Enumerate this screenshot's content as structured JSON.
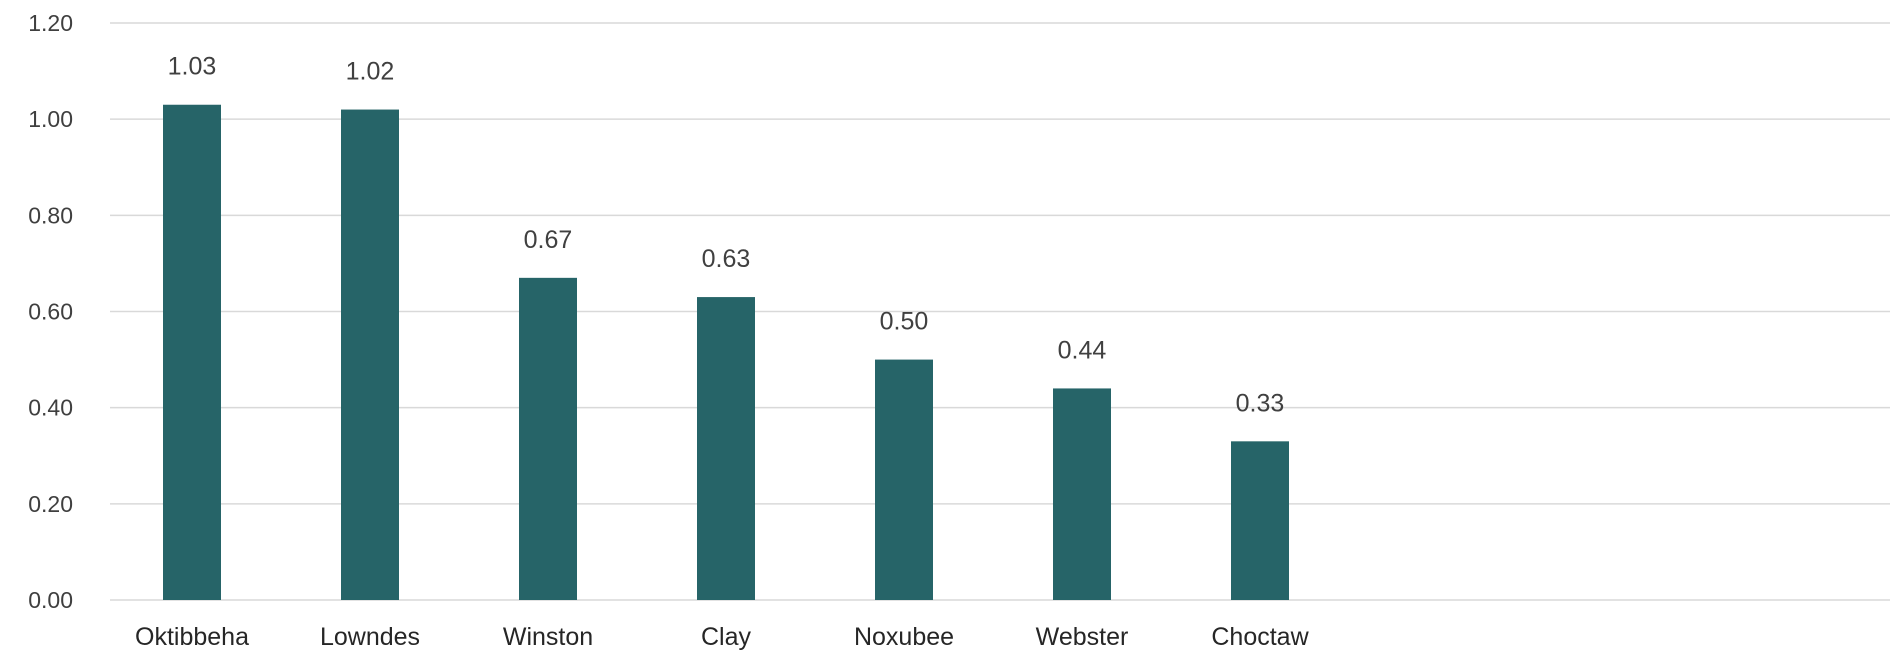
{
  "chart_data": {
    "type": "bar",
    "categories": [
      "Oktibbeha",
      "Lowndes",
      "Winston",
      "Clay",
      "Noxubee",
      "Webster",
      "Choctaw"
    ],
    "values": [
      1.03,
      1.02,
      0.67,
      0.63,
      0.5,
      0.44,
      0.33
    ],
    "data_labels": [
      "1.03",
      "1.02",
      "0.67",
      "0.63",
      "0.50",
      "0.44",
      "0.33"
    ],
    "yticks": [
      0,
      0.2,
      0.4,
      0.6,
      0.8,
      1.0,
      1.2
    ],
    "ytick_labels": [
      "0.00",
      "0.20",
      "0.40",
      "0.60",
      "0.80",
      "1.00",
      "1.20"
    ],
    "ylim": [
      0,
      1.2
    ],
    "title": "",
    "xlabel": "",
    "ylabel": "",
    "grid": true,
    "legend": "none",
    "bar_color": "#266468"
  }
}
